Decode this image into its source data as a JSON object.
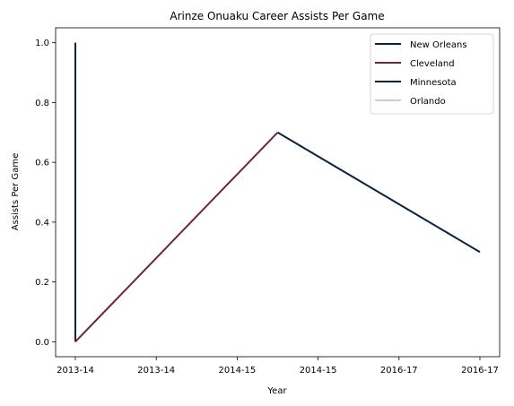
{
  "chart_data": {
    "type": "line",
    "title": "Arinze Onuaku Career Assists Per Game",
    "xlabel": "Year",
    "ylabel": "Assists Per Game",
    "x_tick_labels": [
      "2013-14",
      "2013-14",
      "2014-15",
      "2014-15",
      "2016-17",
      "2016-17"
    ],
    "y_ticks": [
      "0.0",
      "0.2",
      "0.4",
      "0.6",
      "0.8",
      "1.0"
    ],
    "ylim": [
      -0.05,
      1.05
    ],
    "grid": false,
    "legend_position": "top-right",
    "series": [
      {
        "name": "New Orleans",
        "color": "#0C2340",
        "points": [
          [
            0,
            1.0
          ],
          [
            0,
            0.0
          ]
        ]
      },
      {
        "name": "Cleveland",
        "color": "#6F263D",
        "points": [
          [
            0,
            0.0
          ],
          [
            2.5,
            0.7
          ]
        ]
      },
      {
        "name": "Minnesota",
        "color": "#0C2340",
        "points": [
          [
            2.5,
            0.7
          ],
          [
            5,
            0.3
          ]
        ]
      },
      {
        "name": "Orlando",
        "color": "#C4CED4",
        "points": []
      }
    ]
  }
}
